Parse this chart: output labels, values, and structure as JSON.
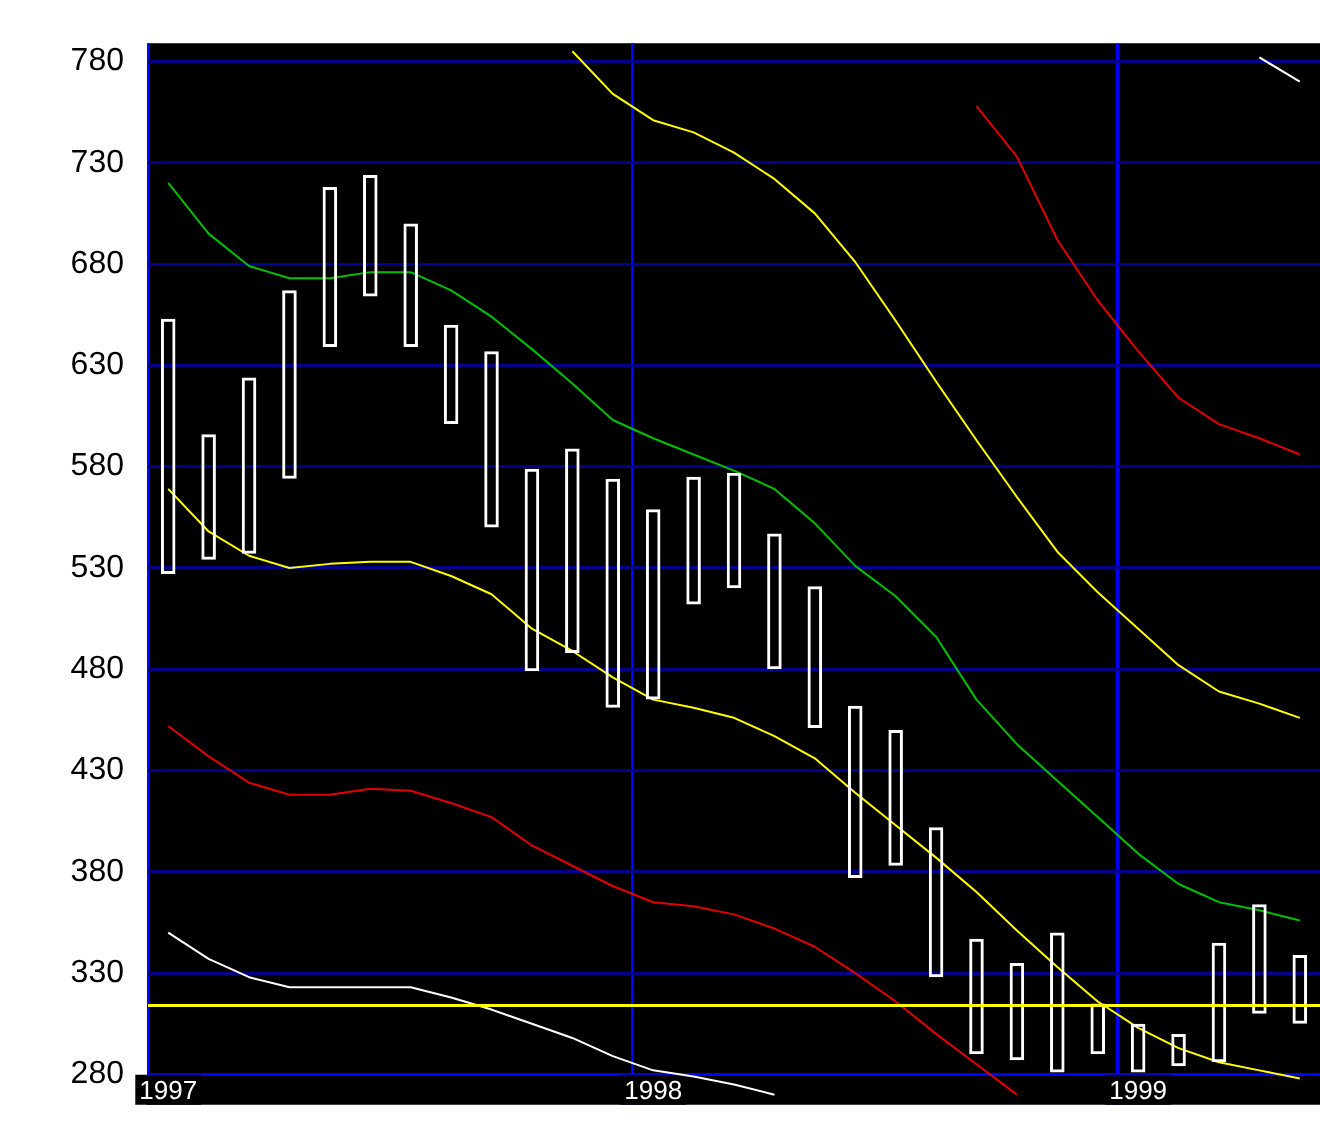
{
  "chart_data": {
    "type": "bar",
    "categories": [
      "1997",
      null,
      null,
      null,
      null,
      null,
      null,
      null,
      null,
      null,
      null,
      null,
      "1998",
      null,
      null,
      null,
      null,
      null,
      null,
      null,
      null,
      null,
      null,
      null,
      "1999",
      null,
      null,
      null,
      null
    ],
    "series": [
      {
        "type": "bar",
        "color": "#ffffff",
        "base": [
          527,
          534,
          537,
          574,
          639,
          664,
          639,
          601,
          550,
          479,
          488,
          461,
          465,
          512,
          520,
          480,
          451,
          377,
          383,
          328,
          290,
          287,
          281,
          290,
          281,
          284,
          286,
          310,
          305
        ],
        "values": [
          126,
          62,
          87,
          93,
          79,
          60,
          61,
          49,
          87,
          100,
          101,
          113,
          94,
          63,
          57,
          67,
          70,
          85,
          67,
          74,
          57,
          48,
          69,
          25,
          24,
          16,
          59,
          54,
          34
        ]
      },
      {
        "type": "line",
        "color": "#00c000",
        "values": [
          720,
          695,
          679,
          673,
          673,
          676,
          676,
          667,
          654,
          638,
          621,
          603,
          594,
          586,
          578,
          569,
          552,
          531,
          516,
          496,
          465,
          443,
          425,
          407,
          389,
          374,
          365,
          361,
          356
        ]
      },
      {
        "type": "line",
        "color": "#ffff00",
        "values": [
          null,
          null,
          null,
          null,
          null,
          null,
          null,
          null,
          null,
          null,
          785,
          764,
          751,
          745,
          735,
          722,
          705,
          681,
          652,
          622,
          593,
          565,
          538,
          518,
          500,
          482,
          469,
          463,
          456
        ]
      },
      {
        "type": "line",
        "color": "#ffff00",
        "values": [
          569,
          548,
          536,
          530,
          532,
          533,
          533,
          526,
          517,
          500,
          489,
          476,
          465,
          461,
          456,
          447,
          436,
          419,
          403,
          387,
          370,
          351,
          333,
          316,
          303,
          293,
          286,
          282,
          278
        ]
      },
      {
        "type": "line",
        "color": "#e00000",
        "values": [
          null,
          null,
          null,
          null,
          null,
          null,
          null,
          null,
          null,
          null,
          null,
          null,
          null,
          null,
          null,
          null,
          null,
          null,
          null,
          null,
          758,
          733,
          692,
          662,
          637,
          614,
          601,
          594,
          586
        ]
      },
      {
        "type": "line",
        "color": "#e00000",
        "values": [
          452,
          437,
          424,
          418,
          418,
          421,
          420,
          414,
          407,
          393,
          383,
          373,
          365,
          363,
          359,
          352,
          343,
          330,
          316,
          300,
          285,
          270,
          null,
          null,
          null,
          null,
          null,
          null,
          null
        ]
      },
      {
        "type": "line",
        "color": "#ffffff",
        "values": [
          null,
          null,
          null,
          null,
          null,
          null,
          null,
          null,
          null,
          null,
          null,
          null,
          null,
          null,
          null,
          null,
          null,
          null,
          null,
          null,
          null,
          null,
          null,
          null,
          null,
          null,
          null,
          782,
          770
        ]
      },
      {
        "type": "line",
        "color": "#ffffff",
        "values": [
          350,
          337,
          328,
          323,
          323,
          323,
          323,
          318,
          312,
          305,
          298,
          289,
          282,
          279,
          275,
          270,
          null,
          null,
          null,
          null,
          null,
          null,
          null,
          null,
          null,
          null,
          null,
          null,
          null
        ]
      }
    ],
    "ylim": [
      265,
      789
    ],
    "yticks": [
      280,
      330,
      380,
      430,
      480,
      530,
      580,
      630,
      680,
      730,
      780
    ],
    "ref_lines": [
      {
        "axis": "y",
        "value": 314,
        "color": "#ffff00"
      }
    ],
    "grid": true,
    "legend": false,
    "marker": "none",
    "line_style": "solid"
  }
}
